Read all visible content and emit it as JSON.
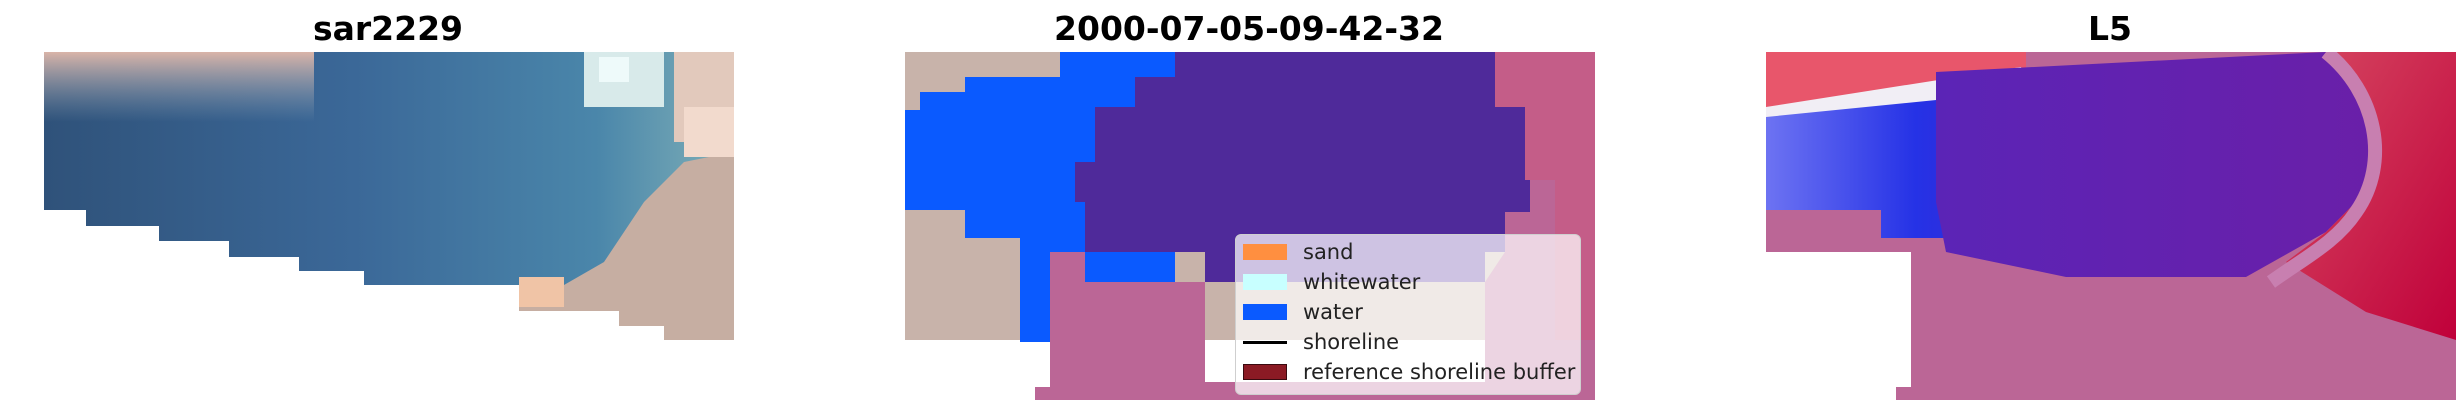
{
  "panels": [
    {
      "title": "sar2229"
    },
    {
      "title": "2000-07-05-09-42-32"
    },
    {
      "title": "L5"
    }
  ],
  "legend": {
    "items": [
      {
        "label": "sand",
        "color": "#ff8f40",
        "kind": "patch"
      },
      {
        "label": "whitewater",
        "color": "#c8ffff",
        "kind": "patch"
      },
      {
        "label": "water",
        "color": "#0a5aff",
        "kind": "patch"
      },
      {
        "label": "shoreline",
        "color": "#000000",
        "kind": "line"
      },
      {
        "label": "reference shoreline buffer",
        "color": "#8b1a24",
        "kind": "patch-outline"
      }
    ]
  },
  "colors": {
    "classified_water": "#0a5aff",
    "classified_water_masked": "#4f2a9a",
    "buffer_pink": "#bb6696",
    "sand_tan": "#c4aea4",
    "l5_red": "#c0003a",
    "l5_blue": "#1a28e8",
    "l5_purple": "#6b1fa6"
  }
}
